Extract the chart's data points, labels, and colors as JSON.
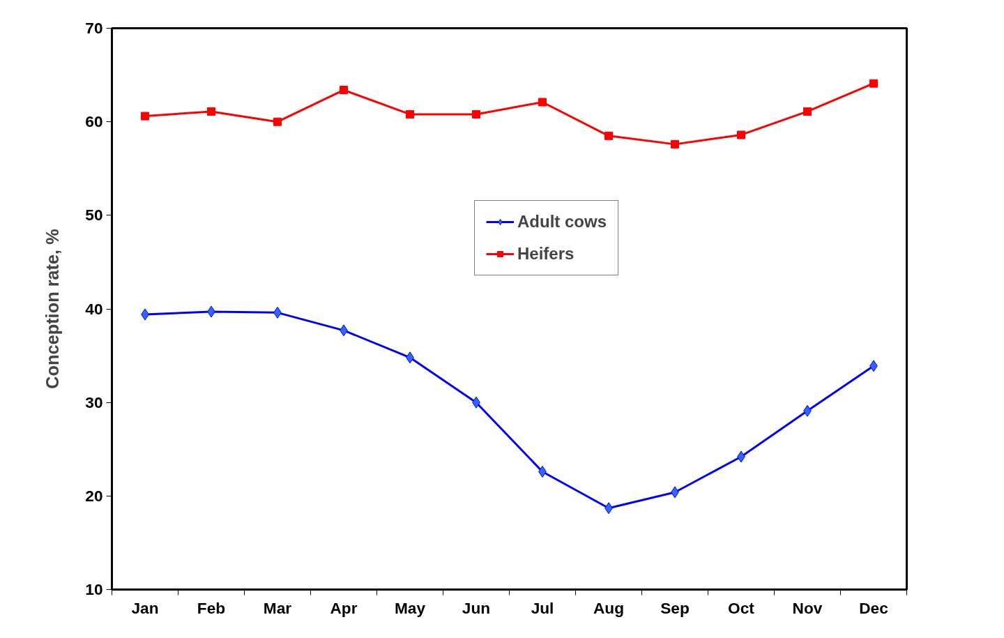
{
  "chart_data": {
    "type": "line",
    "ylabel": "Conception rate, %",
    "categories": [
      "Jan",
      "Feb",
      "Mar",
      "Apr",
      "May",
      "Jun",
      "Jul",
      "Aug",
      "Sep",
      "Oct",
      "Nov",
      "Dec"
    ],
    "series": [
      {
        "name": "Adult cows",
        "color": "#0000ff",
        "marker": "diamond",
        "values": [
          39.4,
          39.7,
          39.6,
          37.7,
          34.8,
          30.0,
          22.6,
          18.7,
          20.4,
          24.2,
          29.1,
          33.9
        ]
      },
      {
        "name": "Heifers",
        "color": "#ff0000",
        "marker": "square",
        "values": [
          60.6,
          61.1,
          60.0,
          63.4,
          60.8,
          60.8,
          62.1,
          58.5,
          57.6,
          58.6,
          61.1,
          64.1
        ]
      }
    ],
    "ylim": [
      10,
      70
    ],
    "yticks": [
      10,
      20,
      30,
      40,
      50,
      60,
      70
    ],
    "grid": false,
    "legend": "center",
    "line_style": "solid"
  }
}
